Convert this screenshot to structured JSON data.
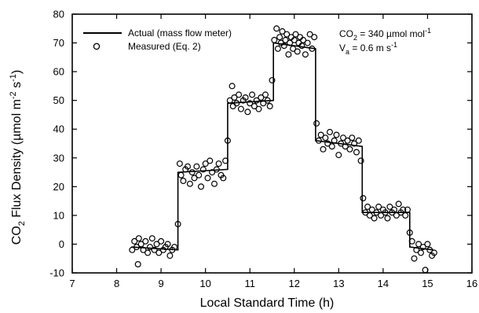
{
  "chart_data": {
    "type": "scatter",
    "xlabel": "Local Standard Time (h)",
    "ylabel": "CO2 Flux Density (µmol m-2 s-1)",
    "xlim": [
      7,
      16
    ],
    "ylim": [
      -10,
      80
    ],
    "xticks": [
      "7",
      "8",
      "9",
      "10",
      "11",
      "12",
      "13",
      "14",
      "15",
      "16"
    ],
    "yticks": [
      "-10",
      "0",
      "10",
      "20",
      "30",
      "40",
      "50",
      "60",
      "70",
      "80"
    ],
    "legend": {
      "placement": "top-left",
      "entries": [
        {
          "label": "Actual (mass flow meter)",
          "marker": "line"
        },
        {
          "label": "Measured (Eq. 2)",
          "marker": "open-circle"
        }
      ]
    },
    "annotations": [
      {
        "text": "CO2 = 340 µmol mol-1",
        "main": "CO",
        "sub": "2",
        "rest": " = 340 µmol mol",
        "sup": "-1"
      },
      {
        "text": "Va = 0.6 m s-1",
        "main": "V",
        "sub": "a",
        "rest": " = 0.6 m s",
        "sup": "-1"
      }
    ],
    "series": [
      {
        "name": "Actual (mass flow meter)",
        "style": "step-line",
        "x": [
          8.33,
          9.38,
          9.38,
          10.5,
          10.5,
          11.53,
          11.53,
          12.48,
          12.48,
          13.53,
          13.53,
          14.6,
          14.6,
          15.13
        ],
        "y": [
          -1,
          -2,
          25,
          26,
          49,
          50,
          70,
          68,
          36,
          34,
          11,
          11,
          -1,
          -2
        ]
      },
      {
        "name": "Measured (Eq. 2)",
        "style": "scatter",
        "points": [
          [
            8.35,
            -2
          ],
          [
            8.4,
            1
          ],
          [
            8.45,
            -1
          ],
          [
            8.48,
            -7
          ],
          [
            8.5,
            2
          ],
          [
            8.55,
            0
          ],
          [
            8.6,
            -2
          ],
          [
            8.65,
            1
          ],
          [
            8.7,
            -3
          ],
          [
            8.75,
            -1
          ],
          [
            8.8,
            2
          ],
          [
            8.85,
            -2
          ],
          [
            8.9,
            0
          ],
          [
            8.95,
            -3
          ],
          [
            9.0,
            1
          ],
          [
            9.05,
            -2
          ],
          [
            9.1,
            -1
          ],
          [
            9.15,
            0
          ],
          [
            9.2,
            -4
          ],
          [
            9.25,
            -2
          ],
          [
            9.3,
            -1
          ],
          [
            9.38,
            7
          ],
          [
            9.42,
            28
          ],
          [
            9.45,
            24
          ],
          [
            9.5,
            22
          ],
          [
            9.55,
            26
          ],
          [
            9.6,
            27
          ],
          [
            9.65,
            21
          ],
          [
            9.7,
            25
          ],
          [
            9.75,
            23
          ],
          [
            9.8,
            27
          ],
          [
            9.85,
            24
          ],
          [
            9.9,
            20
          ],
          [
            9.95,
            26
          ],
          [
            10.0,
            28
          ],
          [
            10.05,
            23
          ],
          [
            10.1,
            29
          ],
          [
            10.15,
            25
          ],
          [
            10.2,
            21
          ],
          [
            10.25,
            26
          ],
          [
            10.3,
            28
          ],
          [
            10.35,
            24
          ],
          [
            10.4,
            23
          ],
          [
            10.45,
            29
          ],
          [
            10.5,
            36
          ],
          [
            10.55,
            50
          ],
          [
            10.6,
            55
          ],
          [
            10.62,
            48
          ],
          [
            10.65,
            51
          ],
          [
            10.7,
            49
          ],
          [
            10.75,
            52
          ],
          [
            10.8,
            47
          ],
          [
            10.85,
            50
          ],
          [
            10.9,
            51
          ],
          [
            10.95,
            46
          ],
          [
            11.0,
            49
          ],
          [
            11.05,
            52
          ],
          [
            11.1,
            48
          ],
          [
            11.15,
            50
          ],
          [
            11.2,
            47
          ],
          [
            11.25,
            51
          ],
          [
            11.3,
            49
          ],
          [
            11.35,
            52
          ],
          [
            11.4,
            50
          ],
          [
            11.45,
            48
          ],
          [
            11.5,
            57
          ],
          [
            11.55,
            71
          ],
          [
            11.6,
            75
          ],
          [
            11.63,
            68
          ],
          [
            11.67,
            72
          ],
          [
            11.7,
            70
          ],
          [
            11.73,
            74
          ],
          [
            11.77,
            69
          ],
          [
            11.8,
            71
          ],
          [
            11.83,
            73
          ],
          [
            11.87,
            66
          ],
          [
            11.9,
            70
          ],
          [
            11.93,
            72
          ],
          [
            11.97,
            68
          ],
          [
            12.0,
            71
          ],
          [
            12.03,
            73
          ],
          [
            12.07,
            67
          ],
          [
            12.1,
            70
          ],
          [
            12.13,
            72
          ],
          [
            12.17,
            69
          ],
          [
            12.2,
            71
          ],
          [
            12.25,
            66
          ],
          [
            12.3,
            70
          ],
          [
            12.35,
            73
          ],
          [
            12.4,
            68
          ],
          [
            12.45,
            72
          ],
          [
            12.5,
            42
          ],
          [
            12.55,
            36
          ],
          [
            12.6,
            38
          ],
          [
            12.65,
            33
          ],
          [
            12.7,
            37
          ],
          [
            12.75,
            35
          ],
          [
            12.8,
            39
          ],
          [
            12.85,
            34
          ],
          [
            12.9,
            36
          ],
          [
            12.95,
            38
          ],
          [
            13.0,
            31
          ],
          [
            13.05,
            35
          ],
          [
            13.1,
            37
          ],
          [
            13.15,
            34
          ],
          [
            13.2,
            36
          ],
          [
            13.25,
            33
          ],
          [
            13.3,
            37
          ],
          [
            13.35,
            35
          ],
          [
            13.4,
            32
          ],
          [
            13.45,
            36
          ],
          [
            13.5,
            29
          ],
          [
            13.55,
            16
          ],
          [
            13.6,
            11
          ],
          [
            13.65,
            13
          ],
          [
            13.7,
            10
          ],
          [
            13.75,
            12
          ],
          [
            13.8,
            9
          ],
          [
            13.85,
            11
          ],
          [
            13.9,
            13
          ],
          [
            13.95,
            10
          ],
          [
            14.0,
            12
          ],
          [
            14.05,
            11
          ],
          [
            14.1,
            9
          ],
          [
            14.15,
            13
          ],
          [
            14.2,
            11
          ],
          [
            14.25,
            12
          ],
          [
            14.3,
            10
          ],
          [
            14.35,
            14
          ],
          [
            14.4,
            11
          ],
          [
            14.45,
            12
          ],
          [
            14.5,
            10
          ],
          [
            14.55,
            12
          ],
          [
            14.6,
            4
          ],
          [
            14.65,
            1
          ],
          [
            14.7,
            -5
          ],
          [
            14.75,
            -2
          ],
          [
            14.8,
            0
          ],
          [
            14.85,
            -3
          ],
          [
            14.9,
            -1
          ],
          [
            14.95,
            -9
          ],
          [
            15.0,
            0
          ],
          [
            15.05,
            -2
          ],
          [
            15.1,
            -4
          ],
          [
            15.15,
            -3
          ]
        ]
      }
    ]
  }
}
